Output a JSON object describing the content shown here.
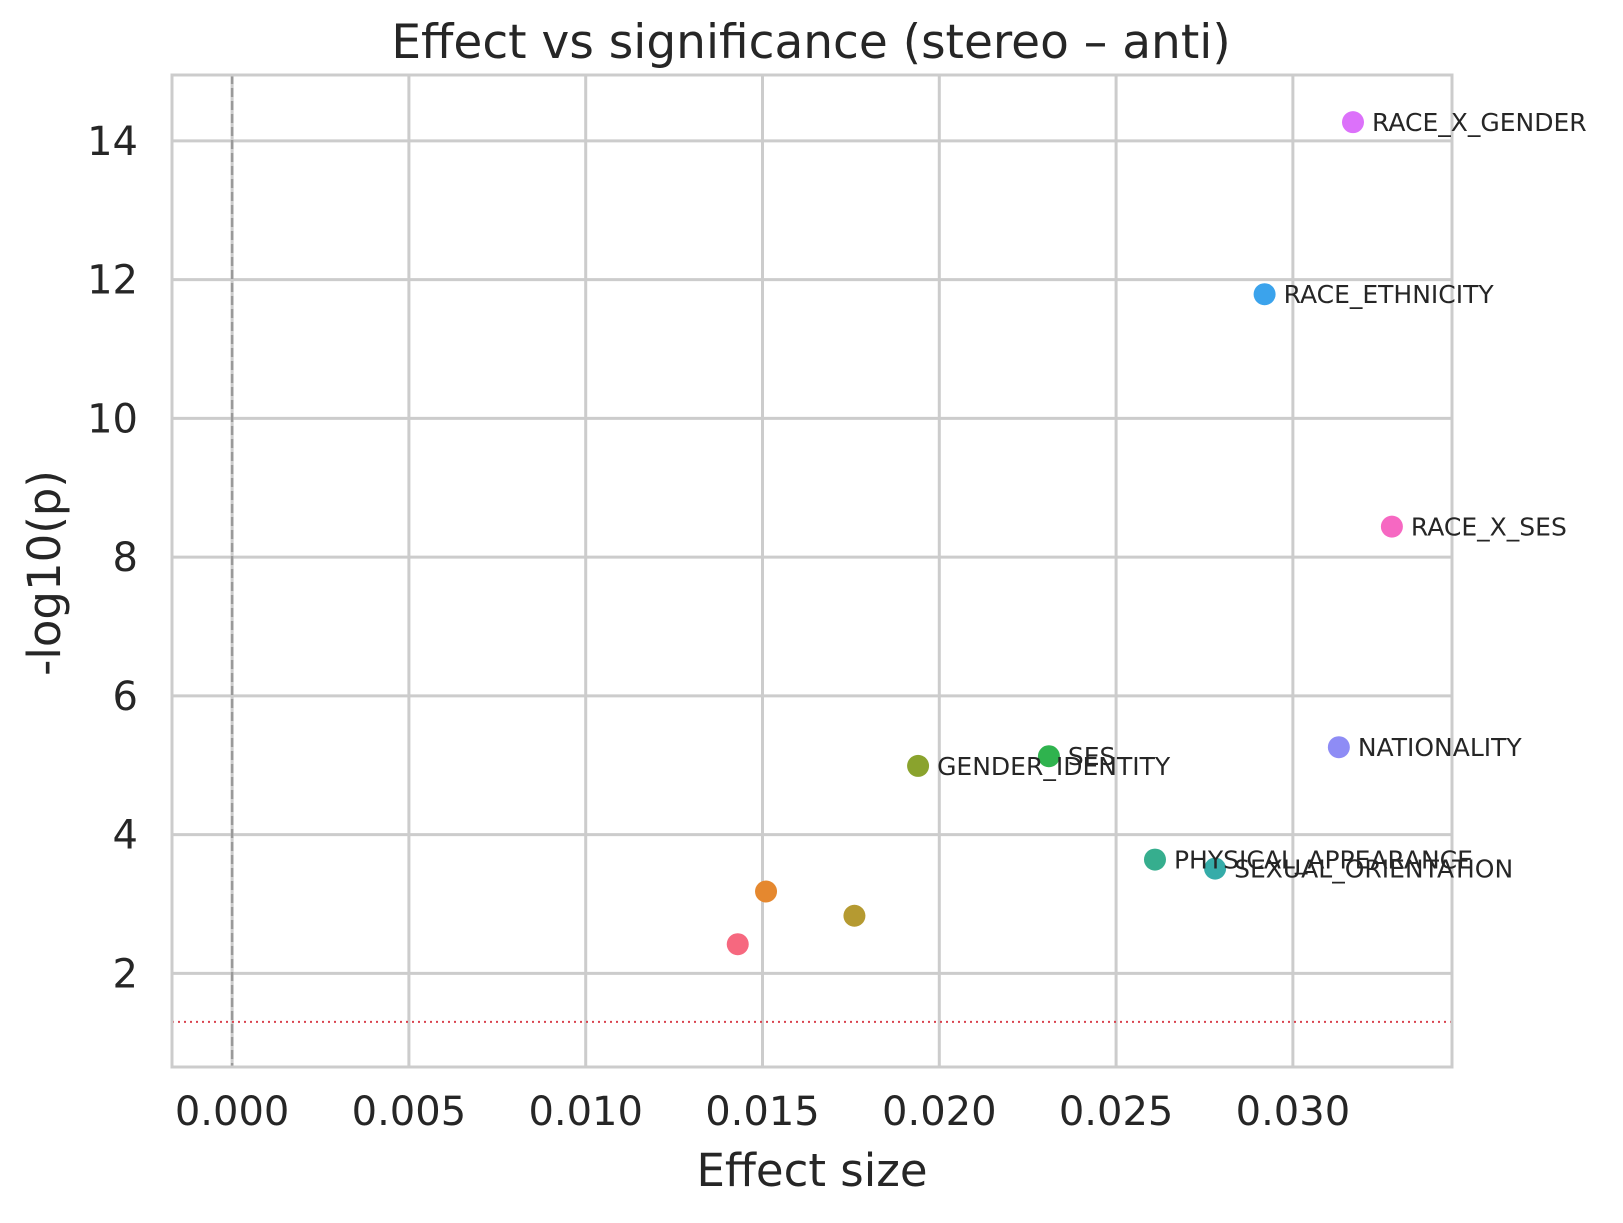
{
  "chart_data": {
    "type": "scatter",
    "title": "Effect vs significance (stereo – anti)",
    "xlabel": "Effect size",
    "ylabel": "-log10(p)",
    "xlim": [
      -0.0017,
      0.0345
    ],
    "ylim": [
      0.65,
      14.95
    ],
    "xticks": [
      0.0,
      0.005,
      0.01,
      0.015,
      0.02,
      0.025,
      0.03
    ],
    "xtick_labels": [
      "0.000",
      "0.005",
      "0.010",
      "0.015",
      "0.020",
      "0.025",
      "0.030"
    ],
    "yticks": [
      2,
      4,
      6,
      8,
      10,
      12,
      14
    ],
    "ytick_labels": [
      "2",
      "4",
      "6",
      "8",
      "10",
      "12",
      "14"
    ],
    "grid": true,
    "reference_lines": [
      {
        "orientation": "vertical",
        "value": 0.0,
        "style": "dashed",
        "color": "#999999"
      },
      {
        "orientation": "horizontal",
        "value": 1.301,
        "style": "dotted",
        "color": "#d9434f"
      }
    ],
    "points": [
      {
        "x": 0.0317,
        "y": 14.27,
        "label": "RACE_X_GENDER",
        "color": "#dc71fa"
      },
      {
        "x": 0.0292,
        "y": 11.79,
        "label": "RACE_ETHNICITY",
        "color": "#3ba3ec"
      },
      {
        "x": 0.0328,
        "y": 8.44,
        "label": "RACE_X_SES",
        "color": "#f668c2"
      },
      {
        "x": 0.0313,
        "y": 5.26,
        "label": "NATIONALITY",
        "color": "#8e8cf5"
      },
      {
        "x": 0.0231,
        "y": 5.13,
        "label": "SES",
        "color": "#2fb34e"
      },
      {
        "x": 0.0194,
        "y": 4.99,
        "label": "GENDER_IDENTITY",
        "color": "#8aa32d"
      },
      {
        "x": 0.0261,
        "y": 3.64,
        "label": "PHYSICAL_APPEARANCE",
        "color": "#36ae8e"
      },
      {
        "x": 0.0278,
        "y": 3.51,
        "label": "SEXUAL_ORIENTATION",
        "color": "#35aca9"
      },
      {
        "x": 0.0151,
        "y": 3.18,
        "label": "",
        "color": "#e5882f"
      },
      {
        "x": 0.0176,
        "y": 2.83,
        "label": "",
        "color": "#b59a31"
      },
      {
        "x": 0.0143,
        "y": 2.42,
        "label": "",
        "color": "#f6687f"
      }
    ]
  }
}
